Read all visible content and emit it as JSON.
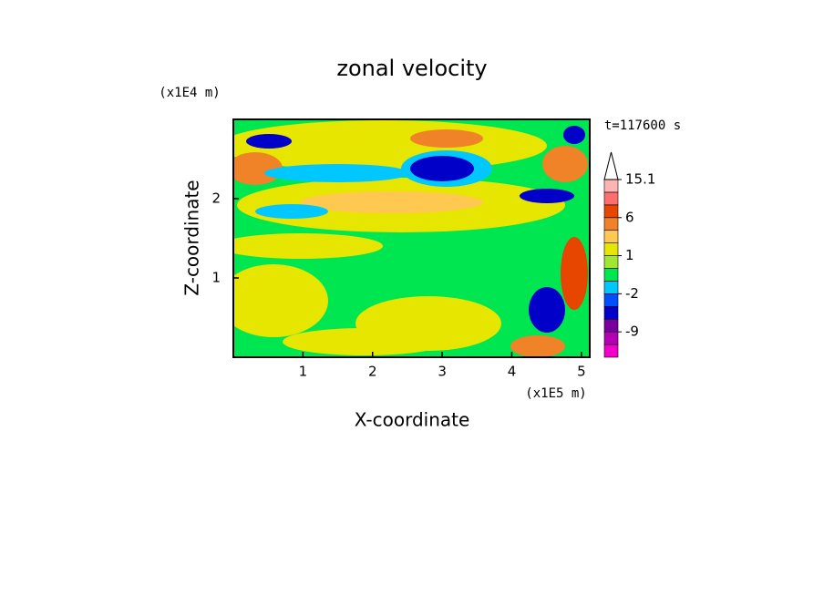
{
  "chart_data": {
    "type": "contour",
    "title": "zonal velocity",
    "x_label": "X-coordinate",
    "y_label": "Z-coordinate",
    "x_scale_label": "(x1E5 m)",
    "y_scale_label": "(x1E4 m)",
    "time_label": "t=117600 s",
    "xlim": [
      0,
      5.12
    ],
    "xticks": [
      1,
      2,
      3,
      4,
      5
    ],
    "ylim": [
      0,
      3
    ],
    "yticks": [
      1,
      2
    ],
    "colorbar": {
      "levels": [
        -15,
        -12,
        -9,
        -6,
        -3,
        -2,
        -1,
        0,
        1,
        2,
        3,
        6,
        9,
        12,
        15.1
      ],
      "colors": [
        "#f000c8",
        "#b400b4",
        "#7800a0",
        "#0000c8",
        "#0050ff",
        "#00c8ff",
        "#00e650",
        "#a0e632",
        "#e6e600",
        "#ffc850",
        "#f08228",
        "#e64600",
        "#ff6e6e",
        "#ffb4b4"
      ],
      "extend_color": "#ffffff",
      "ticks": [
        -9,
        -2,
        1,
        6,
        15.1
      ]
    }
  }
}
